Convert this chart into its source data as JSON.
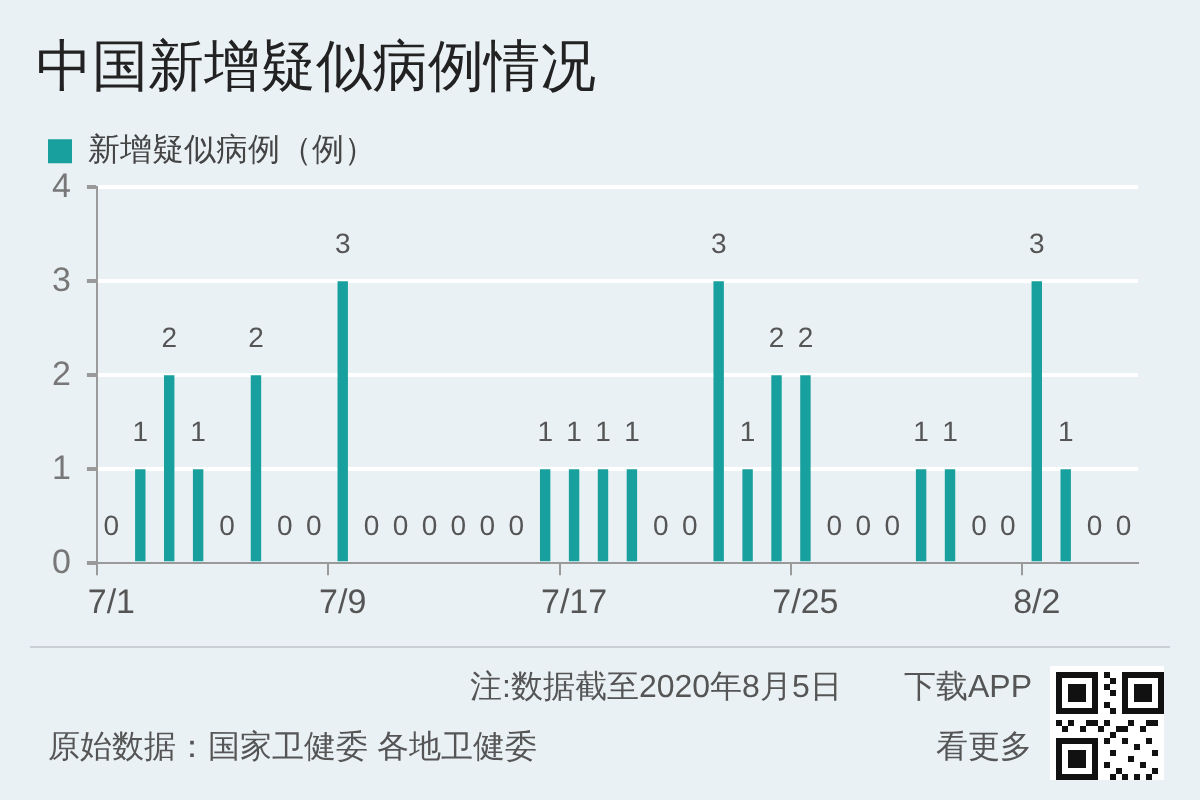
{
  "chart_data": {
    "type": "bar",
    "title": "中国新增疑似病例情况",
    "categories": [
      "7/1",
      null,
      null,
      null,
      null,
      null,
      null,
      null,
      "7/9",
      null,
      null,
      null,
      null,
      null,
      null,
      null,
      "7/17",
      null,
      null,
      null,
      null,
      null,
      null,
      null,
      "7/25",
      null,
      null,
      null,
      null,
      null,
      null,
      null,
      "8/2",
      null,
      null,
      null
    ],
    "series": [
      {
        "name": "新增疑似病例（例）",
        "color": "#17a09e",
        "values": [
          0,
          1,
          2,
          1,
          0,
          2,
          0,
          0,
          3,
          0,
          0,
          0,
          0,
          0,
          0,
          1,
          1,
          1,
          1,
          0,
          0,
          3,
          1,
          2,
          2,
          0,
          0,
          0,
          1,
          1,
          0,
          0,
          3,
          1,
          0,
          0
        ]
      }
    ],
    "ylim": [
      0,
      4
    ],
    "yticks": [
      0,
      1,
      2,
      3,
      4
    ],
    "grid": "y",
    "legend": "top left",
    "data_labels": true,
    "annotations": [
      "注:数据截至2020年8月5日",
      "下载APP",
      "原始数据：国家卫健委 各地卫健委",
      "看更多"
    ]
  }
}
